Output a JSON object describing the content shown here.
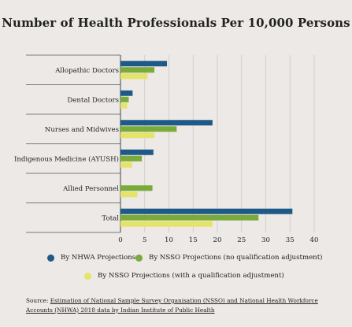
{
  "title": "Number of Health Professionals Per 10,000 Persons",
  "chart_data": {
    "type": "bar",
    "orientation": "horizontal",
    "categories": [
      "Allopathic Doctors",
      "Dental Doctors",
      "Nurses and Midwives",
      "Indigenous Medicine (AYUSH)",
      "Allied Personnel",
      "Total"
    ],
    "series": [
      {
        "name": "By NHWA Projections",
        "color": "#1e5a87",
        "values": [
          9.6,
          2.5,
          19.0,
          6.8,
          0,
          35.5
        ]
      },
      {
        "name": "By NSSO Projections (no qualification adjustment)",
        "color": "#7aaa3a",
        "values": [
          7.0,
          1.7,
          11.6,
          4.4,
          6.6,
          28.5
        ]
      },
      {
        "name": "By NSSO Projections (with a qualification adjustment)",
        "color": "#e6e36a",
        "values": [
          5.6,
          1.4,
          7.0,
          2.4,
          3.5,
          19.0
        ]
      }
    ],
    "xlim": [
      0,
      40
    ],
    "xticks": [
      0,
      5,
      10,
      15,
      20,
      25,
      30,
      35,
      40
    ],
    "grid": "vertical",
    "legend_position": "bottom"
  },
  "legend": {
    "items": [
      "By NHWA Projections",
      "By NSSO Projections (no qualification adjustment)",
      "By NSSO Projections (with a qualification adjustment)"
    ]
  },
  "source": {
    "prefix": "Source: ",
    "text": "Estimation of National Sample Survey Organisation (NSSO) and National Health Workforce Accounts (NHWA) 2018 data by Indian Institute of Public Health"
  }
}
